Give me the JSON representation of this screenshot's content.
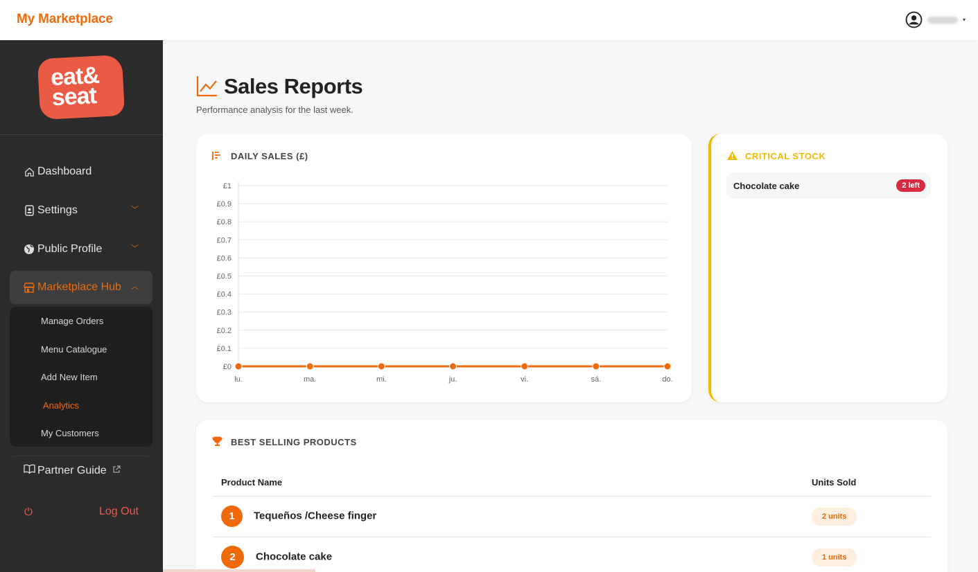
{
  "topbar": {
    "brand": "My Marketplace",
    "user_icon": "user-circle-icon"
  },
  "sidebar": {
    "logo_text": [
      "eat&",
      "seat"
    ],
    "items": [
      {
        "label": "Dashboard",
        "icon": "home-icon"
      },
      {
        "label": "Settings",
        "icon": "id-card-icon"
      },
      {
        "label": "Public Profile",
        "icon": "globe-icon"
      },
      {
        "label": "Marketplace Hub",
        "icon": "store-icon"
      }
    ],
    "subitems": [
      "Manage Orders",
      "Menu Catalogue",
      "Add New Item",
      "Analytics",
      "My Customers"
    ],
    "guide": "Partner Guide",
    "logout": "Log Out"
  },
  "header": {
    "title": "Sales Reports",
    "subtitle": "Performance analysis for the last week."
  },
  "daily": {
    "title": "DAILY SALES (£)"
  },
  "chart_data": {
    "type": "line",
    "categories": [
      "lu.",
      "ma.",
      "mi.",
      "ju.",
      "vi.",
      "sá.",
      "do."
    ],
    "values": [
      0,
      0,
      0,
      0,
      0,
      0,
      0
    ],
    "yticks": [
      "£0",
      "£0.1",
      "£0.2",
      "£0.3",
      "£0.4",
      "£0.5",
      "£0.6",
      "£0.7",
      "£0.8",
      "£0.9",
      "£1"
    ],
    "ylim": [
      0,
      1
    ],
    "grid": true,
    "color": "#f06a0c"
  },
  "stock": {
    "title": "CRITICAL STOCK",
    "item": "Chocolate cake",
    "badge": "2 left"
  },
  "best": {
    "title": "BEST SELLING PRODUCTS",
    "col_name": "Product Name",
    "col_units": "Units Sold",
    "rows": [
      {
        "rank": "1",
        "name": "Tequeños /Cheese finger",
        "units": "2 units"
      },
      {
        "rank": "2",
        "name": "Chocolate cake",
        "units": "1 units"
      }
    ]
  },
  "colors": {
    "accent": "#f06a0c",
    "warning": "#f5b800",
    "danger": "#d82c3e"
  }
}
